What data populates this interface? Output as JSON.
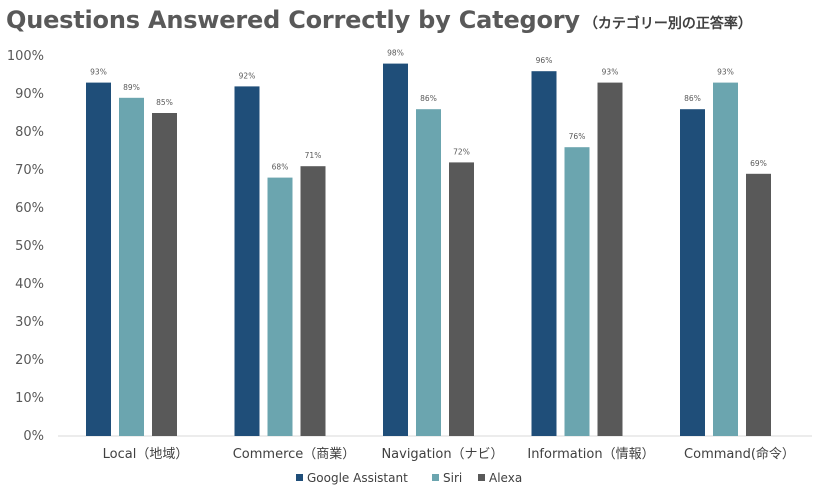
{
  "chart_data": {
    "type": "bar",
    "title": "Questions Answered Correctly by Category",
    "subtitle": "（カテゴリー別の正答率）",
    "categories": [
      "Local（地域）",
      "Commerce（商業）",
      "Navigation（ナビ）",
      "Information（情報）",
      "Command(命令）"
    ],
    "series": [
      {
        "name": "Google Assistant",
        "color": "#1F4E79",
        "values": [
          93,
          92,
          98,
          96,
          86
        ]
      },
      {
        "name": "Siri",
        "color": "#6BA5AF",
        "values": [
          89,
          68,
          86,
          76,
          93
        ]
      },
      {
        "name": "Alexa",
        "color": "#595959",
        "values": [
          85,
          71,
          72,
          93,
          69
        ]
      }
    ],
    "data_labels": [
      [
        "93%",
        "92%",
        "98%",
        "96%",
        "86%"
      ],
      [
        "89%",
        "68%",
        "86%",
        "76%",
        "93%"
      ],
      [
        "85%",
        "71%",
        "72%",
        "93%",
        "69%"
      ]
    ],
    "y_ticks": [
      "0%",
      "10%",
      "20%",
      "30%",
      "40%",
      "50%",
      "60%",
      "70%",
      "80%",
      "90%",
      "100%"
    ],
    "ylim": [
      0,
      100
    ],
    "xlabel": "",
    "ylabel": "",
    "grid": false,
    "legend_position": "bottom"
  }
}
